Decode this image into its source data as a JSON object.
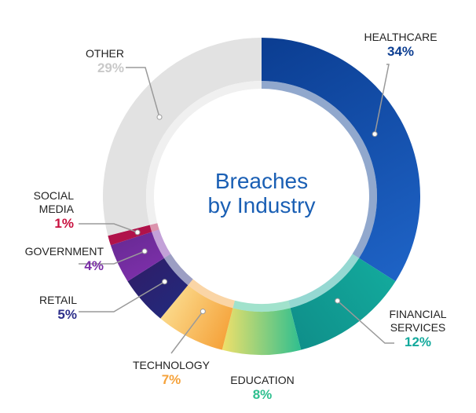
{
  "chart_data": {
    "type": "pie",
    "title": "Breaches by Industry",
    "title_lines": [
      "Breaches",
      "by Industry"
    ],
    "unit": "%",
    "slices": [
      {
        "label": "HEALTHCARE",
        "label_lines": [
          "HEALTHCARE"
        ],
        "value": 34,
        "value_label": "34%",
        "color": "#0b3d91",
        "color2": "#1e63c6"
      },
      {
        "label": "FINANCIAL SERVICES",
        "label_lines": [
          "FINANCIAL",
          "SERVICES"
        ],
        "value": 12,
        "value_label": "12%",
        "color": "#13a99c",
        "color2": "#0f8f8a"
      },
      {
        "label": "EDUCATION",
        "label_lines": [
          "EDUCATION"
        ],
        "value": 8,
        "value_label": "8%",
        "color": "#2fbf8f",
        "color2": "#f0e06a"
      },
      {
        "label": "TECHNOLOGY",
        "label_lines": [
          "TECHNOLOGY"
        ],
        "value": 7,
        "value_label": "7%",
        "color": "#f5a23a",
        "color2": "#fbd98a"
      },
      {
        "label": "RETAIL",
        "label_lines": [
          "RETAIL"
        ],
        "value": 5,
        "value_label": "5%",
        "color": "#24287a",
        "color2": "#2d1f6b"
      },
      {
        "label": "GOVERNMENT",
        "label_lines": [
          "GOVERNMENT"
        ],
        "value": 4,
        "value_label": "4%",
        "color": "#7b2fa8",
        "color2": "#6a2a96"
      },
      {
        "label": "SOCIAL MEDIA",
        "label_lines": [
          "SOCIAL",
          "MEDIA"
        ],
        "value": 1,
        "value_label": "1%",
        "color": "#b0124a",
        "color2": "#b0124a"
      },
      {
        "label": "OTHER",
        "label_lines": [
          "OTHER"
        ],
        "value": 29,
        "value_label": "29%",
        "color": "#e2e2e2",
        "color2": "#e2e2e2"
      }
    ],
    "pct_colors": {
      "HEALTHCARE": "#0b3d91",
      "FINANCIAL SERVICES": "#13a99c",
      "EDUCATION": "#2fbf8f",
      "TECHNOLOGY": "#f5a23a",
      "RETAIL": "#2d2f8a",
      "GOVERNMENT": "#7b2fa8",
      "SOCIAL MEDIA": "#c8103e",
      "OTHER": "#c9c9c9"
    }
  }
}
